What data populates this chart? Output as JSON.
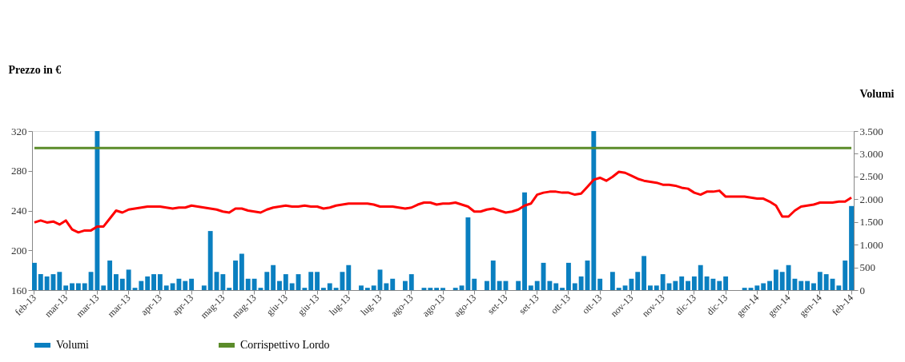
{
  "chart_data": {
    "type": "line",
    "ylabel": "Prezzo in €",
    "y2label": "Volumi",
    "categories": [
      "feb-13",
      null,
      null,
      null,
      null,
      "mar-13",
      null,
      null,
      null,
      null,
      "mar-13",
      null,
      null,
      null,
      null,
      "mar-13",
      null,
      null,
      null,
      null,
      "apr-13",
      null,
      null,
      null,
      null,
      "apr-13",
      null,
      null,
      null,
      null,
      "mag-13",
      null,
      null,
      null,
      null,
      "mag-13",
      null,
      null,
      null,
      null,
      "giu-13",
      null,
      null,
      null,
      null,
      "giu-13",
      null,
      null,
      null,
      null,
      "lug-13",
      null,
      null,
      null,
      null,
      "lug-13",
      null,
      null,
      null,
      null,
      "ago-13",
      null,
      null,
      null,
      null,
      "ago-13",
      null,
      null,
      null,
      null,
      "ago-13",
      null,
      null,
      null,
      null,
      "set-13",
      null,
      null,
      null,
      null,
      "set-13",
      null,
      null,
      null,
      null,
      "ott-13",
      null,
      null,
      null,
      null,
      "ott-13",
      null,
      null,
      null,
      null,
      "nov-13",
      null,
      null,
      null,
      null,
      "nov-13",
      null,
      null,
      null,
      null,
      "dic-13",
      null,
      null,
      null,
      null,
      "dic-13",
      null,
      null,
      null,
      null,
      "gen-14",
      null,
      null,
      null,
      null,
      "gen-14",
      null,
      null,
      null,
      null,
      "gen-14",
      null,
      null,
      null,
      null,
      "feb-14"
    ],
    "series": [
      {
        "name": "Volumi",
        "type": "bar",
        "axis": "y2",
        "color": "#0a7fc0",
        "values": [
          600,
          350,
          300,
          350,
          400,
          100,
          150,
          150,
          150,
          400,
          3500,
          100,
          650,
          350,
          250,
          450,
          50,
          200,
          300,
          350,
          350,
          100,
          150,
          250,
          200,
          250,
          0,
          100,
          1300,
          400,
          350,
          50,
          650,
          800,
          250,
          250,
          50,
          400,
          550,
          200,
          350,
          150,
          350,
          50,
          400,
          400,
          50,
          150,
          50,
          400,
          550,
          0,
          100,
          50,
          100,
          450,
          150,
          250,
          0,
          200,
          350,
          0,
          50,
          50,
          50,
          50,
          0,
          50,
          100,
          1600,
          250,
          0,
          200,
          650,
          200,
          200,
          0,
          200,
          2150,
          100,
          200,
          600,
          200,
          150,
          50,
          600,
          150,
          300,
          650,
          3500,
          250,
          0,
          400,
          50,
          100,
          250,
          400,
          750,
          100,
          100,
          350,
          150,
          200,
          300,
          200,
          300,
          550,
          300,
          250,
          200,
          300,
          0,
          0,
          50,
          50,
          100,
          150,
          200,
          450,
          400,
          550,
          250,
          200,
          200,
          150,
          400,
          350,
          250,
          100,
          650,
          1850
        ]
      },
      {
        "color": "#ff0000",
        "values": [
          228,
          230,
          228,
          229,
          226,
          230,
          221,
          218,
          220,
          220,
          224,
          224,
          232,
          240,
          238,
          241,
          242,
          243,
          244,
          244,
          244,
          243,
          242,
          243,
          243,
          245,
          244,
          243,
          242,
          241,
          239,
          238,
          242,
          242,
          240,
          239,
          238,
          241,
          243,
          244,
          245,
          244,
          244,
          245,
          244,
          244,
          242,
          243,
          245,
          246,
          247,
          247,
          247,
          247,
          246,
          244,
          244,
          244,
          243,
          242,
          243,
          246,
          248,
          248,
          246,
          247,
          247,
          248,
          246,
          244,
          239,
          239,
          241,
          242,
          240,
          238,
          239,
          241,
          245,
          247,
          256,
          258,
          259,
          259,
          258,
          258,
          256,
          257,
          264,
          271,
          273,
          270,
          274,
          279,
          278,
          275,
          272,
          270,
          269,
          268,
          266,
          266,
          265,
          263,
          262,
          258,
          256,
          259,
          259,
          260,
          254,
          254,
          254,
          254,
          253,
          252,
          252,
          249,
          245,
          234,
          234,
          240,
          244,
          245,
          246,
          248,
          248,
          248,
          249,
          249,
          253
        ]
      },
      {
        "name": "Corrispettivo Lordo",
        "type": "line",
        "color": "#5b8c2a",
        "values": [
          303,
          303,
          303,
          303,
          303,
          303,
          303,
          303,
          303,
          303,
          303,
          303,
          303,
          303,
          303,
          303,
          303,
          303,
          303,
          303,
          303,
          303,
          303,
          303,
          303,
          303,
          303,
          303,
          303,
          303,
          303,
          303,
          303,
          303,
          303,
          303,
          303,
          303,
          303,
          303,
          303,
          303,
          303,
          303,
          303,
          303,
          303,
          303,
          303,
          303,
          303,
          303,
          303,
          303,
          303,
          303,
          303,
          303,
          303,
          303,
          303,
          303,
          303,
          303,
          303,
          303,
          303,
          303,
          303,
          303,
          303,
          303,
          303,
          303,
          303,
          303,
          303,
          303,
          303,
          303,
          303,
          303,
          303,
          303,
          303,
          303,
          303,
          303,
          303,
          303,
          303,
          303,
          303,
          303,
          303,
          303,
          303,
          303,
          303,
          303,
          303,
          303,
          303,
          303,
          303,
          303,
          303,
          303,
          303,
          303,
          303,
          303,
          303,
          303,
          303,
          303,
          303,
          303,
          303,
          303,
          303,
          303,
          303,
          303,
          303,
          303,
          303,
          303,
          303,
          303,
          303
        ]
      }
    ],
    "ylim": [
      160,
      320
    ],
    "yticks": [
      160,
      200,
      240,
      280,
      320
    ],
    "y2lim": [
      0,
      3500
    ],
    "y2ticks": [
      0,
      500,
      {
        "value": 1000,
        "label": "1.000"
      },
      {
        "value": 1500,
        "label": "1.500"
      },
      {
        "value": 2000,
        "label": "2.000"
      },
      {
        "value": 2500,
        "label": "2.500"
      },
      {
        "value": 3000,
        "label": "3.000"
      },
      {
        "value": 3500,
        "label": "3.500"
      }
    ],
    "legend": "bottom",
    "grid": false
  }
}
